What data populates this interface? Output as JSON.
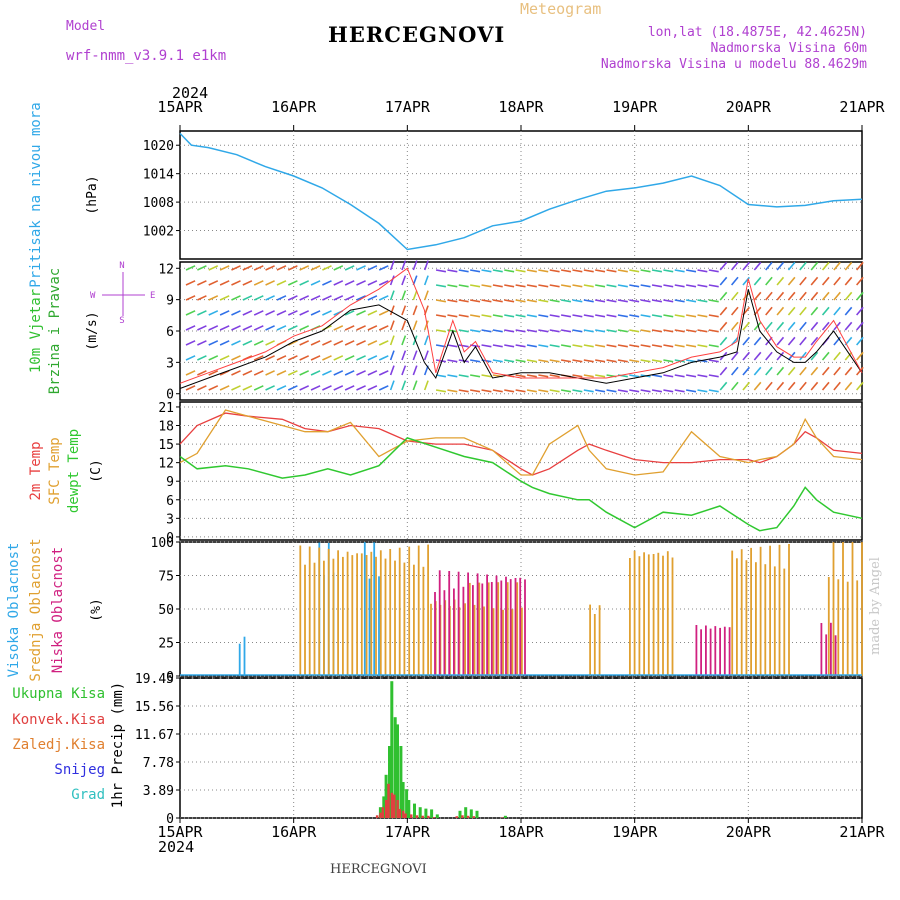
{
  "header": {
    "model_label": "Model",
    "model_name": "wrf-nmm_v3.9.1 e1km",
    "title": "HERCEGNOVI",
    "meteogram_label": "Meteogram",
    "lonlat": "lon,lat (18.4875E, 42.4625N)",
    "elevation": "Nadmorska Visina 60m",
    "model_elevation": "Nadmorska Visina u modelu 88.4629m",
    "year_top": "2024",
    "year_bottom": "2024",
    "footer_title": "HERCEGNOVI",
    "watermark": "made by Angel"
  },
  "x_axis": {
    "ticks": [
      "15APR",
      "16APR",
      "17APR",
      "18APR",
      "19APR",
      "20APR",
      "21APR"
    ]
  },
  "colors": {
    "pressure": "#30a8e8",
    "temp2m": "#e84040",
    "sfctemp": "#e0a030",
    "dewpt": "#30c830",
    "high_cloud": "#30a8e8",
    "mid_cloud": "#e0a030",
    "low_cloud": "#d02080",
    "precip_total": "#30c030",
    "precip_conv": "#e04040",
    "precip_strat": "#e08030",
    "snow": "#3030e0",
    "graupel": "#30c0c0",
    "wind_label": "#30c030",
    "wind_label2": "#30a830",
    "title": "#000000",
    "header_purple": "#b040d0",
    "meteogram": "#e8c080"
  },
  "chart_data": [
    {
      "type": "line",
      "id": "pressure",
      "ylabel": "Pritisak na nivou mora",
      "unit": "(hPa)",
      "yticks": [
        "1020",
        "1014",
        "1008",
        "1002"
      ],
      "ylim": [
        996,
        1023
      ],
      "x": [
        0,
        0.1,
        0.25,
        0.5,
        0.75,
        1.0,
        1.25,
        1.5,
        1.75,
        2.0,
        2.25,
        2.5,
        2.75,
        3.0,
        3.25,
        3.5,
        3.75,
        4.0,
        4.25,
        4.5,
        4.75,
        5.0,
        5.25,
        5.5,
        5.75,
        6.0
      ],
      "series": [
        {
          "values": [
            1022.5,
            1020,
            1019.5,
            1018,
            1015.5,
            1013.5,
            1011,
            1007.5,
            1003.5,
            998,
            999,
            1000.5,
            1003,
            1004,
            1006.5,
            1008.5,
            1010.3,
            1011,
            1012,
            1013.5,
            1011.5,
            1007.5,
            1007,
            1007.3,
            1008.3,
            1008.6
          ]
        }
      ]
    },
    {
      "type": "line",
      "id": "wind",
      "ylabel": "10m Vjetar",
      "ylabel2": "Brzina i Pravac",
      "unit": "(m/s)",
      "compass": [
        "N",
        "W",
        "E",
        "S"
      ],
      "yticks": [
        "12",
        "9",
        "6",
        "3",
        "0"
      ],
      "ylim": [
        -0.6,
        12.6
      ],
      "x": [
        0,
        0.25,
        0.5,
        0.75,
        1.0,
        1.25,
        1.5,
        1.75,
        2.0,
        2.15,
        2.25,
        2.4,
        2.5,
        2.6,
        2.75,
        3.0,
        3.25,
        3.5,
        3.75,
        4.0,
        4.25,
        4.5,
        4.75,
        4.9,
        5.0,
        5.1,
        5.25,
        5.4,
        5.5,
        5.6,
        5.75,
        6.0
      ],
      "series": [
        {
          "values": [
            0.5,
            1.5,
            2.5,
            3.5,
            5,
            6,
            8,
            8.5,
            7,
            3,
            1.5,
            6,
            3,
            4.5,
            1.5,
            2,
            2,
            1.5,
            1,
            1.5,
            2,
            3,
            3.5,
            4,
            10,
            6,
            4,
            3,
            3,
            4,
            6,
            2
          ]
        },
        {
          "values": [
            1,
            2,
            3,
            4,
            5.5,
            6.5,
            8.5,
            10,
            12,
            8,
            2,
            7,
            4,
            5,
            2,
            1.5,
            1.5,
            1.5,
            1.5,
            2,
            2.5,
            3.5,
            4,
            5,
            11,
            7,
            4.5,
            3.5,
            3.5,
            5,
            7,
            2
          ]
        }
      ]
    },
    {
      "type": "line",
      "id": "temperature",
      "ylabel": "2m Temp",
      "ylabel2": "SFC Temp",
      "ylabel3": "dewpt Temp",
      "unit": "(C)",
      "yticks": [
        "21",
        "18",
        "15",
        "12",
        "9",
        "6",
        "3",
        "0"
      ],
      "ylim": [
        -0.5,
        21.8
      ],
      "x": [
        0,
        0.15,
        0.4,
        0.6,
        0.9,
        1.1,
        1.3,
        1.5,
        1.75,
        2.0,
        2.25,
        2.5,
        2.75,
        3.0,
        3.1,
        3.25,
        3.5,
        3.6,
        3.75,
        4.0,
        4.25,
        4.5,
        4.75,
        5.0,
        5.1,
        5.25,
        5.4,
        5.5,
        5.6,
        5.75,
        6.0
      ],
      "series": [
        {
          "values": [
            15,
            18,
            20,
            19.5,
            19,
            17.5,
            17,
            18,
            17.5,
            15.5,
            15,
            15,
            14,
            11,
            10,
            11,
            14,
            15,
            14,
            12.5,
            12,
            12,
            12.5,
            12.5,
            12,
            13,
            15,
            17,
            16,
            14,
            13.5
          ]
        },
        {
          "values": [
            12,
            13.5,
            20.5,
            19.5,
            18,
            17,
            17,
            18.5,
            13,
            15.5,
            16,
            16,
            14,
            10,
            10,
            15,
            18,
            14,
            11,
            10,
            10.5,
            17,
            13,
            12,
            12.5,
            13,
            15,
            19,
            16,
            13,
            12.5
          ]
        },
        {
          "values": [
            13,
            11,
            11.5,
            11,
            9.5,
            10,
            11,
            10,
            11.5,
            16,
            14.5,
            13,
            12,
            9,
            8,
            7,
            6,
            6,
            4,
            1.5,
            4,
            3.5,
            5,
            2,
            1,
            1.5,
            5,
            8,
            6,
            4,
            3
          ]
        }
      ]
    },
    {
      "type": "bar",
      "id": "clouds",
      "ylabel": "Visoka Oblacnost",
      "ylabel2": "Srednja Oblacnost",
      "ylabel3": "Niska Oblacnost",
      "unit": "(%)",
      "yticks": [
        "100",
        "75",
        "50",
        "25",
        "0"
      ],
      "ylim": [
        0,
        100
      ],
      "series": [
        {
          "name": "high",
          "ranges": [
            [
              0.5,
              0.55,
              30
            ],
            [
              1.2,
              1.35,
              100
            ],
            [
              1.6,
              1.75,
              100
            ]
          ]
        },
        {
          "name": "mid",
          "ranges": [
            [
              1.05,
              2.2,
              100
            ],
            [
              2.2,
              2.45,
              60
            ],
            [
              2.5,
              3.0,
              70
            ],
            [
              3.6,
              3.7,
              55
            ],
            [
              3.95,
              4.35,
              100
            ],
            [
              4.85,
              5.35,
              100
            ],
            [
              5.7,
              6.0,
              100
            ]
          ]
        },
        {
          "name": "low",
          "ranges": [
            [
              2.2,
              3.0,
              80
            ],
            [
              4.5,
              4.8,
              40
            ],
            [
              5.6,
              5.75,
              40
            ]
          ]
        }
      ]
    },
    {
      "type": "bar",
      "id": "precip",
      "ylabel": "1hr Precip",
      "unit": "(mm)",
      "legend": [
        "Ukupna Kisa",
        "Konvek.Kisa",
        "Zaledj.Kisa",
        "Snijeg",
        "Grad"
      ],
      "yticks": [
        "19.45",
        "15.56",
        "11.67",
        "7.78",
        "3.89",
        "0"
      ],
      "ylim": [
        0,
        19.45
      ],
      "x": [
        1.75,
        1.78,
        1.8,
        1.83,
        1.85,
        1.88,
        1.9,
        1.93,
        1.95,
        1.98,
        2.0,
        2.05,
        2.1,
        2.15,
        2.2,
        2.25,
        2.45,
        2.5,
        2.55,
        2.6,
        2.85
      ],
      "values": [
        1.5,
        3,
        6,
        10,
        19,
        14,
        13,
        10,
        5,
        4,
        2.5,
        2,
        1.5,
        1.3,
        1.2,
        0.5,
        1,
        1.5,
        1.2,
        1,
        0.3
      ]
    }
  ]
}
